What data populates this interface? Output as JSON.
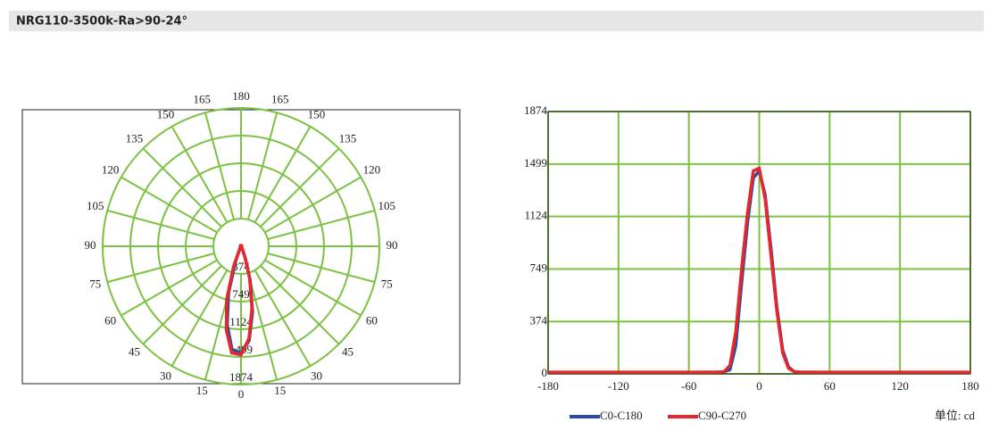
{
  "title": "NRG110-3500k-Ra>90-24°",
  "chart_data": [
    {
      "type": "polar",
      "angle_ticks": [
        0,
        15,
        30,
        45,
        60,
        75,
        90,
        105,
        120,
        135,
        150,
        165,
        180
      ],
      "rlim": [
        0,
        1874
      ],
      "rticks": [
        374,
        749,
        1124,
        1499,
        1874
      ],
      "grid_color": "#7cc242",
      "x": [
        -180,
        -150,
        -120,
        -90,
        -60,
        -45,
        -40,
        -35,
        -30,
        -25,
        -20,
        -15,
        -10,
        -5,
        0,
        5,
        10,
        15,
        20,
        25,
        30,
        35,
        40,
        45,
        60,
        90,
        120,
        150,
        180
      ],
      "series": [
        {
          "color": "#2b4fa0",
          "values": [
            10,
            10,
            10,
            10,
            10,
            12,
            12,
            12,
            15,
            30,
            200,
            650,
            1080,
            1400,
            1450,
            1280,
            900,
            480,
            170,
            50,
            15,
            12,
            12,
            12,
            10,
            10,
            10,
            10,
            10
          ]
        },
        {
          "color": "#e8262b",
          "values": [
            12,
            12,
            12,
            12,
            12,
            12,
            12,
            12,
            15,
            60,
            300,
            750,
            1150,
            1450,
            1470,
            1250,
            850,
            450,
            150,
            40,
            15,
            12,
            12,
            12,
            12,
            12,
            12,
            12,
            12
          ]
        }
      ]
    },
    {
      "type": "line",
      "xlim": [
        -180,
        180
      ],
      "xticks": [
        -180,
        -120,
        -60,
        0,
        60,
        120,
        180
      ],
      "ylim": [
        0,
        1874
      ],
      "yticks": [
        0,
        374,
        749,
        1124,
        1499,
        1874
      ],
      "grid": true,
      "grid_color": "#7cc242",
      "unit_label": "单位: cd",
      "x": [
        -180,
        -150,
        -120,
        -90,
        -60,
        -45,
        -40,
        -35,
        -30,
        -25,
        -20,
        -15,
        -10,
        -5,
        0,
        5,
        10,
        15,
        20,
        25,
        30,
        35,
        40,
        45,
        60,
        90,
        120,
        150,
        180
      ],
      "series": [
        {
          "name": "C0-C180",
          "color": "#2b4fa0",
          "values": [
            10,
            10,
            10,
            10,
            10,
            12,
            12,
            12,
            15,
            30,
            200,
            650,
            1080,
            1400,
            1450,
            1280,
            900,
            480,
            170,
            50,
            15,
            12,
            12,
            12,
            10,
            10,
            10,
            10,
            10
          ]
        },
        {
          "name": "C90-C270",
          "color": "#e8262b",
          "values": [
            12,
            12,
            12,
            12,
            12,
            12,
            12,
            12,
            15,
            60,
            300,
            750,
            1150,
            1450,
            1470,
            1250,
            850,
            450,
            150,
            40,
            15,
            12,
            12,
            12,
            12,
            12,
            12,
            12,
            12
          ]
        }
      ]
    }
  ]
}
